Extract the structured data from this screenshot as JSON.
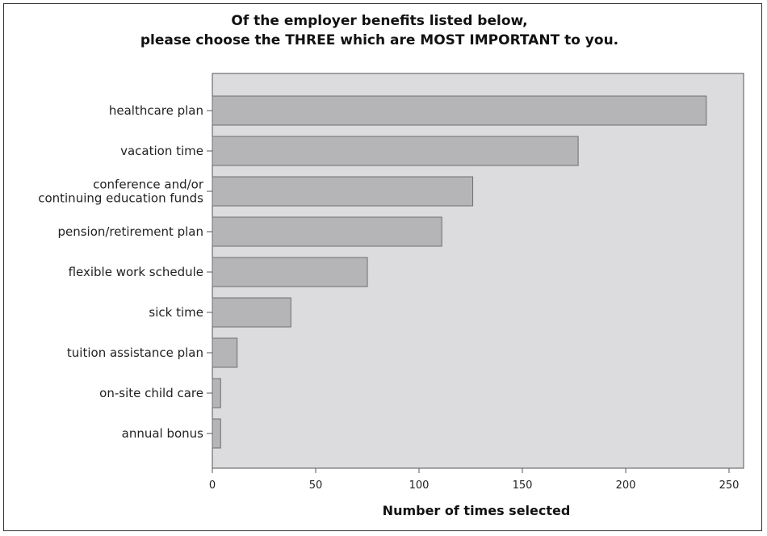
{
  "chart_data": {
    "type": "bar",
    "orientation": "horizontal",
    "title": [
      "Of the employer benefits listed below,",
      "please choose the THREE which are MOST IMPORTANT to you."
    ],
    "xlabel": "Number of times selected",
    "ylabel": "",
    "xlim": [
      0,
      265
    ],
    "xticks": [
      0,
      50,
      100,
      150,
      200,
      250
    ],
    "categories": [
      [
        "healthcare plan"
      ],
      [
        "vacation time"
      ],
      [
        "conference and/or",
        "continuing education funds"
      ],
      [
        "pension/retirement plan"
      ],
      [
        "flexible work schedule"
      ],
      [
        "sick time"
      ],
      [
        "tuition assistance plan"
      ],
      [
        "on-site child care"
      ],
      [
        "annual bonus"
      ]
    ],
    "values": [
      239,
      177,
      126,
      111,
      75,
      38,
      12,
      4,
      4
    ],
    "grid": false,
    "legend": "none",
    "colors": {
      "plot_background": "#dcdcde",
      "bar_fill": "#b5b5b7",
      "bar_stroke": "#6e6e70",
      "axis": "#555555"
    }
  }
}
